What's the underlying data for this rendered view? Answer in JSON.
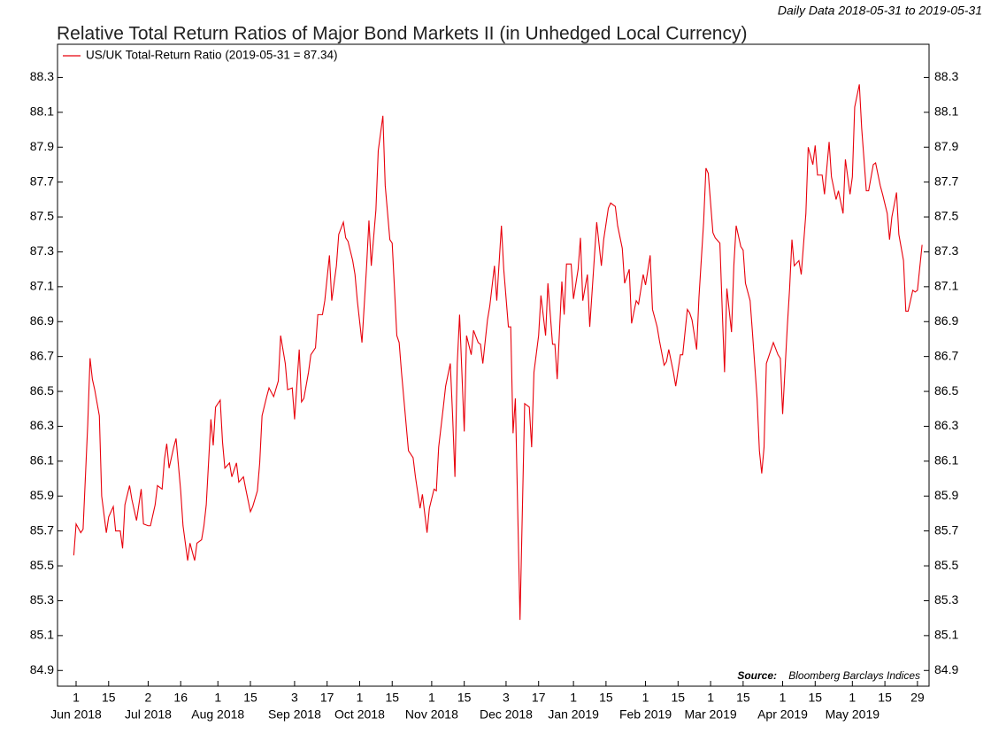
{
  "chart_data": {
    "type": "line",
    "title": "Relative Total Return Ratios of Major Bond Markets II (in Unhedged Local Currency)",
    "subtitle": "Daily Data 2018-05-31 to 2019-05-31",
    "source_label": "Source:",
    "source": "Bloomberg Barclays Indices",
    "legend": "upper left",
    "xlim": [
      "2018-05-24",
      "2019-06-03"
    ],
    "ylim": [
      84.81,
      88.49
    ],
    "yticks": [
      84.9,
      85.1,
      85.3,
      85.5,
      85.7,
      85.9,
      86.1,
      86.3,
      86.5,
      86.7,
      86.9,
      87.1,
      87.3,
      87.5,
      87.7,
      87.9,
      88.1,
      88.3
    ],
    "xticks": [
      {
        "value": "2018-06-01",
        "label": "1"
      },
      {
        "value": "2018-06-15",
        "label": "15"
      },
      {
        "value": "2018-07-02",
        "label": "2"
      },
      {
        "value": "2018-07-16",
        "label": "16"
      },
      {
        "value": "2018-08-01",
        "label": "1"
      },
      {
        "value": "2018-08-15",
        "label": "15"
      },
      {
        "value": "2018-09-03",
        "label": "3"
      },
      {
        "value": "2018-09-17",
        "label": "17"
      },
      {
        "value": "2018-10-01",
        "label": "1"
      },
      {
        "value": "2018-10-15",
        "label": "15"
      },
      {
        "value": "2018-11-01",
        "label": "1"
      },
      {
        "value": "2018-11-15",
        "label": "15"
      },
      {
        "value": "2018-12-03",
        "label": "3"
      },
      {
        "value": "2018-12-17",
        "label": "17"
      },
      {
        "value": "2019-01-01",
        "label": "1"
      },
      {
        "value": "2019-01-15",
        "label": "15"
      },
      {
        "value": "2019-02-01",
        "label": "1"
      },
      {
        "value": "2019-02-15",
        "label": "15"
      },
      {
        "value": "2019-03-01",
        "label": "1"
      },
      {
        "value": "2019-03-15",
        "label": "15"
      },
      {
        "value": "2019-04-01",
        "label": "1"
      },
      {
        "value": "2019-04-15",
        "label": "15"
      },
      {
        "value": "2019-05-01",
        "label": "1"
      },
      {
        "value": "2019-05-15",
        "label": "15"
      },
      {
        "value": "2019-05-29",
        "label": "29"
      }
    ],
    "xmonths": [
      {
        "value": "2018-06-01",
        "label": "Jun 2018"
      },
      {
        "value": "2018-07-02",
        "label": "Jul 2018"
      },
      {
        "value": "2018-08-01",
        "label": "Aug 2018"
      },
      {
        "value": "2018-09-03",
        "label": "Sep 2018"
      },
      {
        "value": "2018-10-01",
        "label": "Oct 2018"
      },
      {
        "value": "2018-11-01",
        "label": "Nov 2018"
      },
      {
        "value": "2018-12-03",
        "label": "Dec 2018"
      },
      {
        "value": "2019-01-01",
        "label": "Jan 2019"
      },
      {
        "value": "2019-02-01",
        "label": "Feb 2019"
      },
      {
        "value": "2019-03-01",
        "label": "Mar 2019"
      },
      {
        "value": "2019-04-01",
        "label": "Apr 2019"
      },
      {
        "value": "2019-05-01",
        "label": "May 2019"
      }
    ],
    "x": [
      "2018-05-31",
      "2018-06-01",
      "2018-06-03",
      "2018-06-04",
      "2018-06-06",
      "2018-06-07",
      "2018-06-08",
      "2018-06-09",
      "2018-06-11",
      "2018-06-12",
      "2018-06-14",
      "2018-06-15",
      "2018-06-17",
      "2018-06-18",
      "2018-06-20",
      "2018-06-21",
      "2018-06-22",
      "2018-06-24",
      "2018-06-25",
      "2018-06-27",
      "2018-06-29",
      "2018-06-30",
      "2018-07-02",
      "2018-07-03",
      "2018-07-05",
      "2018-07-06",
      "2018-07-08",
      "2018-07-09",
      "2018-07-10",
      "2018-07-11",
      "2018-07-13",
      "2018-07-14",
      "2018-07-16",
      "2018-07-17",
      "2018-07-19",
      "2018-07-20",
      "2018-07-22",
      "2018-07-23",
      "2018-07-25",
      "2018-07-26",
      "2018-07-27",
      "2018-07-29",
      "2018-07-30",
      "2018-07-31",
      "2018-08-02",
      "2018-08-03",
      "2018-08-04",
      "2018-08-06",
      "2018-08-07",
      "2018-08-09",
      "2018-08-10",
      "2018-08-12",
      "2018-08-13",
      "2018-08-15",
      "2018-08-16",
      "2018-08-18",
      "2018-08-19",
      "2018-08-20",
      "2018-08-22",
      "2018-08-23",
      "2018-08-25",
      "2018-08-27",
      "2018-08-28",
      "2018-08-30",
      "2018-08-31",
      "2018-09-02",
      "2018-09-03",
      "2018-09-05",
      "2018-09-06",
      "2018-09-07",
      "2018-09-09",
      "2018-09-10",
      "2018-09-12",
      "2018-09-13",
      "2018-09-15",
      "2018-09-16",
      "2018-09-18",
      "2018-09-19",
      "2018-09-21",
      "2018-09-22",
      "2018-09-24",
      "2018-09-25",
      "2018-09-26",
      "2018-09-28",
      "2018-09-29",
      "2018-09-30",
      "2018-10-02",
      "2018-10-04",
      "2018-10-05",
      "2018-10-06",
      "2018-10-08",
      "2018-10-09",
      "2018-10-11",
      "2018-10-12",
      "2018-10-14",
      "2018-10-15",
      "2018-10-17",
      "2018-10-18",
      "2018-10-19",
      "2018-10-21",
      "2018-10-22",
      "2018-10-24",
      "2018-10-25",
      "2018-10-27",
      "2018-10-28",
      "2018-10-30",
      "2018-10-31",
      "2018-11-02",
      "2018-11-03",
      "2018-11-04",
      "2018-11-06",
      "2018-11-07",
      "2018-11-09",
      "2018-11-10",
      "2018-11-11",
      "2018-11-12",
      "2018-11-13",
      "2018-11-15",
      "2018-11-16",
      "2018-11-18",
      "2018-11-19",
      "2018-11-21",
      "2018-11-22",
      "2018-11-23",
      "2018-11-25",
      "2018-11-26",
      "2018-11-28",
      "2018-11-29",
      "2018-12-01",
      "2018-12-02",
      "2018-12-04",
      "2018-12-05",
      "2018-12-06",
      "2018-12-07",
      "2018-12-09",
      "2018-12-10",
      "2018-12-11",
      "2018-12-13",
      "2018-12-14",
      "2018-12-15",
      "2018-12-17",
      "2018-12-18",
      "2018-12-20",
      "2018-12-21",
      "2018-12-23",
      "2018-12-24",
      "2018-12-25",
      "2018-12-27",
      "2018-12-28",
      "2018-12-29",
      "2018-12-31",
      "2019-01-01",
      "2019-01-03",
      "2019-01-04",
      "2019-01-05",
      "2019-01-07",
      "2019-01-08",
      "2019-01-10",
      "2019-01-11",
      "2019-01-13",
      "2019-01-14",
      "2019-01-16",
      "2019-01-17",
      "2019-01-19",
      "2019-01-20",
      "2019-01-22",
      "2019-01-23",
      "2019-01-25",
      "2019-01-26",
      "2019-01-28",
      "2019-01-29",
      "2019-01-31",
      "2019-02-01",
      "2019-02-03",
      "2019-02-04",
      "2019-02-06",
      "2019-02-07",
      "2019-02-09",
      "2019-02-10",
      "2019-02-11",
      "2019-02-13",
      "2019-02-14",
      "2019-02-16",
      "2019-02-17",
      "2019-02-19",
      "2019-02-20",
      "2019-02-21",
      "2019-02-23",
      "2019-02-24",
      "2019-02-26",
      "2019-02-27",
      "2019-02-28",
      "2019-03-02",
      "2019-03-03",
      "2019-03-05",
      "2019-03-06",
      "2019-03-07",
      "2019-03-08",
      "2019-03-10",
      "2019-03-11",
      "2019-03-12",
      "2019-03-14",
      "2019-03-15",
      "2019-03-16",
      "2019-03-18",
      "2019-03-19",
      "2019-03-21",
      "2019-03-22",
      "2019-03-23",
      "2019-03-24",
      "2019-03-25",
      "2019-03-27",
      "2019-03-28",
      "2019-03-30",
      "2019-03-31",
      "2019-04-01",
      "2019-04-03",
      "2019-04-04",
      "2019-04-05",
      "2019-04-06",
      "2019-04-08",
      "2019-04-09",
      "2019-04-11",
      "2019-04-12",
      "2019-04-14",
      "2019-04-15",
      "2019-04-16",
      "2019-04-18",
      "2019-04-19",
      "2019-04-21",
      "2019-04-22",
      "2019-04-24",
      "2019-04-25",
      "2019-04-27",
      "2019-04-28",
      "2019-04-30",
      "2019-05-01",
      "2019-05-02",
      "2019-05-04",
      "2019-05-05",
      "2019-05-07",
      "2019-05-08",
      "2019-05-10",
      "2019-05-11",
      "2019-05-13",
      "2019-05-14",
      "2019-05-16",
      "2019-05-17",
      "2019-05-18",
      "2019-05-20",
      "2019-05-21",
      "2019-05-23",
      "2019-05-24",
      "2019-05-25",
      "2019-05-27",
      "2019-05-28",
      "2019-05-29",
      "2019-05-31"
    ],
    "series": [
      {
        "name": "US/UK Total-Return Ratio (2019-05-31 = 87.34)",
        "color": "#e8000b",
        "values": [
          85.56,
          85.74,
          85.69,
          85.71,
          86.31,
          86.69,
          86.57,
          86.51,
          86.36,
          85.9,
          85.69,
          85.78,
          85.84,
          85.7,
          85.7,
          85.6,
          85.85,
          85.96,
          85.88,
          85.76,
          85.94,
          85.74,
          85.73,
          85.73,
          85.85,
          85.96,
          85.94,
          86.11,
          86.2,
          86.06,
          86.18,
          86.23,
          85.93,
          85.73,
          85.53,
          85.63,
          85.53,
          85.63,
          85.65,
          85.73,
          85.85,
          86.34,
          86.19,
          86.41,
          86.45,
          86.21,
          86.06,
          86.09,
          86.01,
          86.09,
          85.98,
          86.01,
          85.94,
          85.81,
          85.84,
          85.93,
          86.09,
          86.36,
          86.47,
          86.52,
          86.47,
          86.56,
          86.82,
          86.66,
          86.51,
          86.52,
          86.34,
          86.74,
          86.44,
          86.46,
          86.61,
          86.71,
          86.75,
          86.94,
          86.94,
          87.02,
          87.28,
          87.02,
          87.22,
          87.4,
          87.47,
          87.38,
          87.36,
          87.25,
          87.17,
          87.02,
          86.78,
          87.22,
          87.48,
          87.22,
          87.54,
          87.88,
          88.08,
          87.68,
          87.37,
          87.35,
          86.82,
          86.78,
          86.61,
          86.31,
          86.16,
          86.12,
          86.01,
          85.83,
          85.91,
          85.69,
          85.83,
          85.94,
          85.93,
          86.18,
          86.41,
          86.53,
          86.66,
          86.36,
          86.01,
          86.66,
          86.94,
          86.27,
          86.82,
          86.71,
          86.85,
          86.78,
          86.77,
          86.66,
          86.91,
          86.99,
          87.22,
          87.02,
          87.45,
          87.2,
          86.87,
          86.87,
          86.26,
          86.46,
          85.19,
          85.81,
          86.43,
          86.41,
          86.18,
          86.61,
          86.82,
          87.05,
          86.82,
          87.12,
          86.77,
          86.77,
          86.57,
          87.13,
          86.94,
          87.23,
          87.23,
          87.03,
          87.2,
          87.38,
          87.02,
          87.17,
          86.87,
          87.27,
          87.47,
          87.22,
          87.37,
          87.55,
          87.58,
          87.56,
          87.45,
          87.32,
          87.12,
          87.2,
          86.89,
          87.02,
          87.0,
          87.17,
          87.11,
          87.28,
          86.97,
          86.87,
          86.79,
          86.65,
          86.67,
          86.74,
          86.61,
          86.53,
          86.71,
          86.71,
          86.97,
          86.95,
          86.91,
          86.74,
          87.04,
          87.47,
          87.78,
          87.75,
          87.41,
          87.38,
          87.35,
          86.97,
          86.61,
          87.09,
          86.84,
          87.22,
          87.45,
          87.33,
          87.31,
          87.12,
          87.02,
          86.84,
          86.46,
          86.16,
          86.03,
          86.18,
          86.66,
          86.74,
          86.78,
          86.71,
          86.69,
          86.37,
          86.87,
          87.09,
          87.37,
          87.22,
          87.25,
          87.17,
          87.52,
          87.9,
          87.8,
          87.91,
          87.74,
          87.74,
          87.63,
          87.93,
          87.73,
          87.6,
          87.65,
          87.52,
          87.83,
          87.63,
          87.73,
          88.13,
          88.26,
          88.01,
          87.65,
          87.65,
          87.8,
          87.81,
          87.68,
          87.63,
          87.52,
          87.37,
          87.5,
          87.64,
          87.4,
          87.25,
          86.96,
          86.96,
          87.08,
          87.07,
          87.08,
          87.34
        ]
      }
    ]
  }
}
